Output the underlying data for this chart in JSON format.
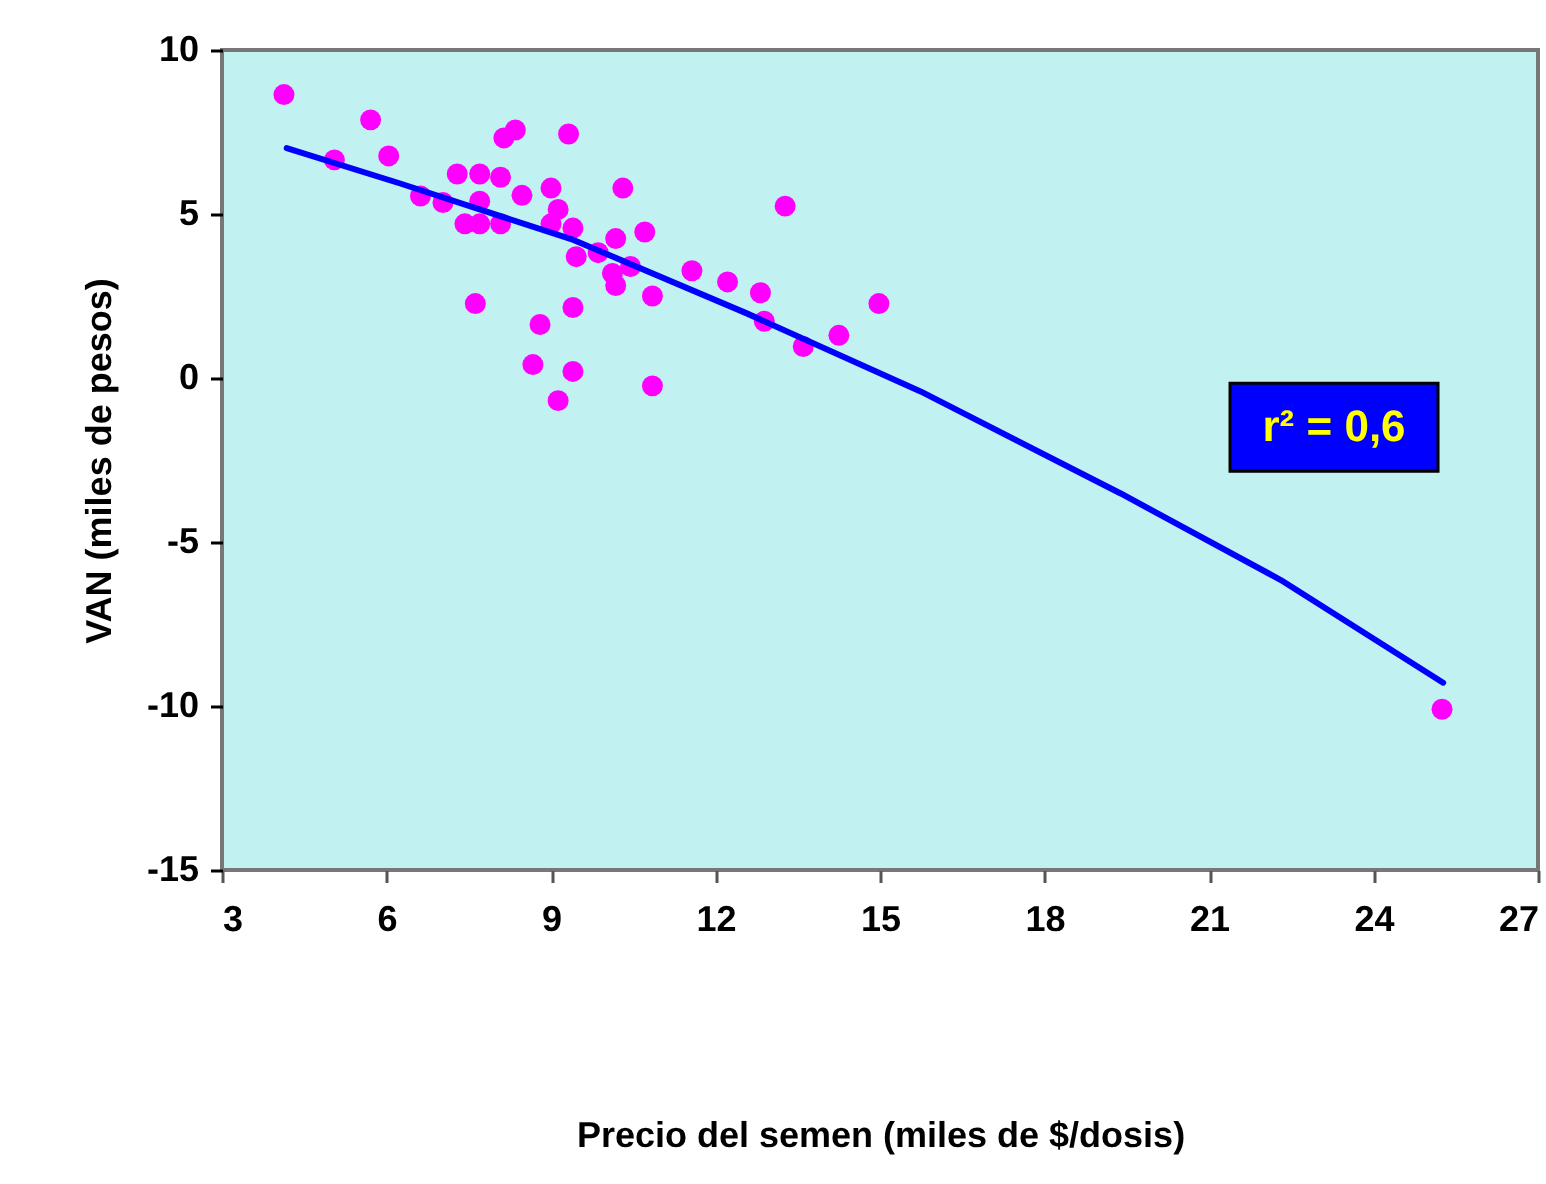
{
  "chart_data": {
    "type": "scatter",
    "xlabel": "Precio del semen (miles de $/dosis)",
    "ylabel": "VAN (miles de pesos)",
    "xlim": [
      3,
      27
    ],
    "xticks": [
      3,
      6,
      9,
      12,
      15,
      18,
      21,
      24,
      27
    ],
    "ylim": [
      -15,
      10
    ],
    "yticks": [
      -15,
      -10,
      -5,
      0,
      5,
      10
    ],
    "grid": false,
    "annotations": [
      "r² = 0,6"
    ],
    "series": [
      {
        "marker": "circle",
        "color": "#ff00ff",
        "x": [
          4.13,
          5.05,
          5.71,
          6.04,
          6.62,
          7.03,
          7.29,
          7.7,
          8.08,
          7.7,
          7.43,
          7.7,
          8.08,
          7.62,
          8.14,
          8.35,
          8.47,
          9.0,
          9.13,
          9.0,
          9.4,
          9.32,
          9.46,
          9.86,
          10.31,
          10.18,
          10.71,
          10.12,
          10.45,
          10.18,
          10.85,
          11.57,
          12.22,
          12.82,
          12.89,
          13.27,
          13.6,
          14.25,
          14.98,
          9.4,
          8.8,
          8.67,
          9.4,
          9.13,
          10.85,
          25.25
        ],
        "values": [
          8.64,
          6.65,
          7.87,
          6.77,
          5.55,
          5.35,
          6.22,
          6.22,
          6.12,
          5.39,
          4.7,
          4.7,
          4.7,
          2.27,
          7.32,
          7.56,
          5.57,
          5.79,
          5.14,
          4.7,
          4.57,
          7.44,
          3.7,
          3.82,
          5.79,
          4.25,
          4.45,
          3.19,
          3.4,
          2.82,
          2.5,
          3.27,
          2.93,
          2.6,
          1.73,
          5.24,
          0.96,
          1.3,
          2.27,
          2.15,
          1.63,
          0.41,
          0.2,
          -0.69,
          -0.24,
          -10.1
        ]
      },
      {
        "type": "line",
        "marker": "none",
        "color": "#0000ff",
        "x": [
          4.18,
          6.25,
          9.41,
          12.57,
          15.74,
          19.39,
          22.31,
          25.27
        ],
        "values": [
          7.01,
          5.93,
          4.21,
          1.97,
          -0.41,
          -3.52,
          -6.16,
          -9.29
        ]
      }
    ]
  }
}
